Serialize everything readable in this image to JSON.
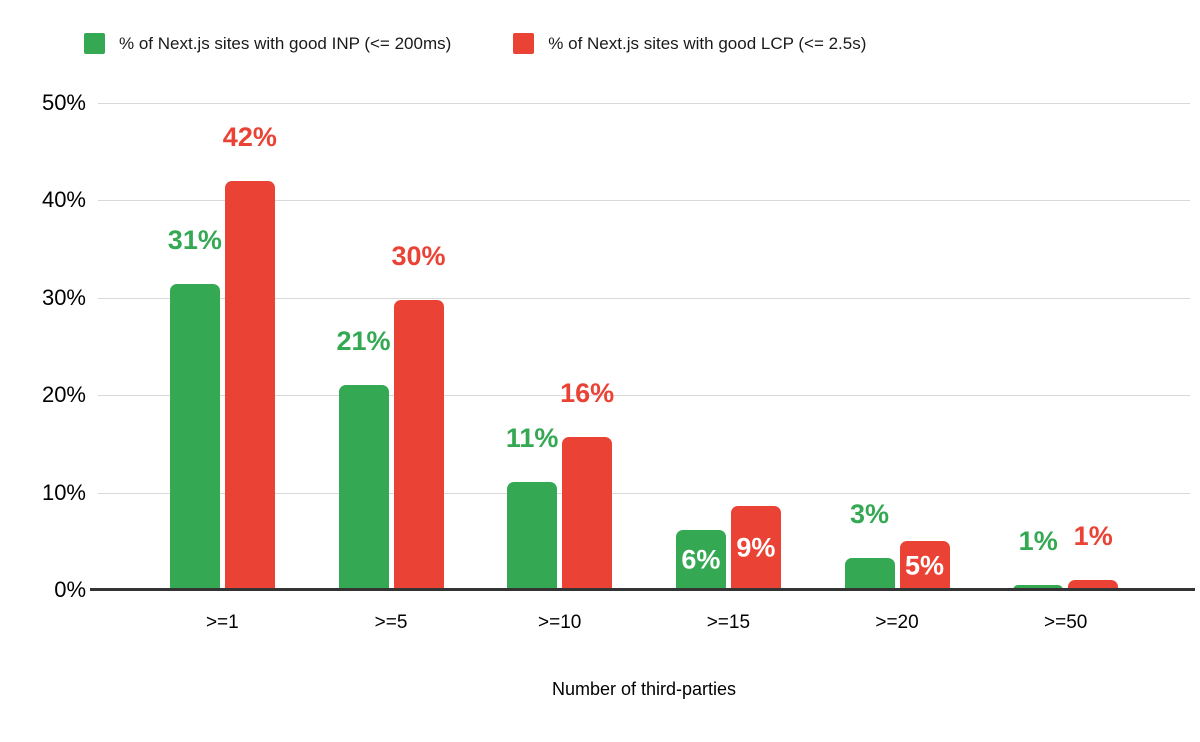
{
  "legend": [
    {
      "label": "% of Next.js sites with good INP (<= 200ms)",
      "color": "#34a853"
    },
    {
      "label": "% of Next.js sites with good LCP (<= 2.5s)",
      "color": "#ea4335"
    }
  ],
  "colors": {
    "inp_green": "#34a853",
    "lcp_red": "#ea4335",
    "gridline": "#d9d9d9",
    "axis_baseline": "#333333",
    "inside_label": "#ffffff",
    "background": "#ffffff"
  },
  "chart_data": {
    "type": "bar",
    "title": "",
    "categories": [
      ">=1",
      ">=5",
      ">=10",
      ">=15",
      ">=20",
      ">=50"
    ],
    "series": [
      {
        "name": "% of Next.js sites with good INP (<= 200ms)",
        "color": "#34a853",
        "values": [
          31.4,
          21.1,
          11.1,
          6.2,
          3.3,
          0.5
        ],
        "labels": [
          "31%",
          "21%",
          "11%",
          "6%",
          "3%",
          "1%"
        ],
        "label_placement": [
          "above",
          "above",
          "above",
          "inside",
          "above",
          "above"
        ]
      },
      {
        "name": "% of Next.js sites with good LCP (<= 2.5s)",
        "color": "#ea4335",
        "values": [
          42.0,
          29.8,
          15.7,
          8.6,
          5.0,
          1.0
        ],
        "labels": [
          "42%",
          "30%",
          "16%",
          "9%",
          "5%",
          "1%"
        ],
        "label_placement": [
          "above",
          "above",
          "above",
          "inside",
          "inside",
          "above"
        ]
      }
    ],
    "xlabel": "Number of third-parties",
    "ylabel": "",
    "ylim": [
      0,
      50
    ],
    "yticks": [
      "0%",
      "10%",
      "20%",
      "30%",
      "40%",
      "50%"
    ],
    "grid": true,
    "legend_position": "top"
  }
}
